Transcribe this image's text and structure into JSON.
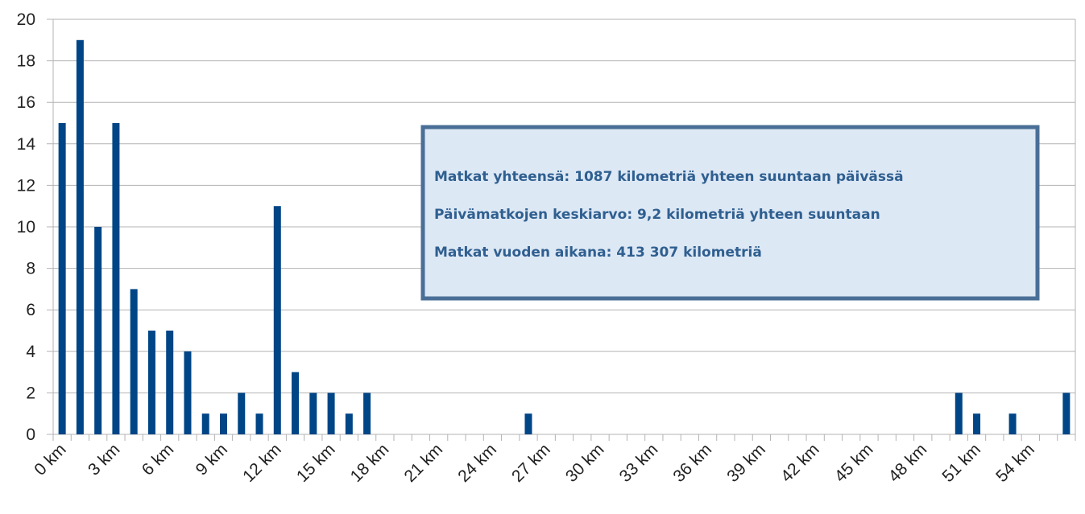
{
  "chart_data": {
    "type": "bar",
    "categories": [
      "0 km",
      null,
      null,
      "3 km",
      null,
      null,
      "6 km",
      null,
      null,
      "9 km",
      null,
      null,
      "12 km",
      null,
      null,
      "15 km",
      null,
      null,
      "18 km",
      null,
      null,
      "21 km",
      null,
      null,
      "24 km",
      null,
      null,
      "27 km",
      null,
      null,
      "30 km",
      null,
      null,
      "33 km",
      null,
      null,
      "36 km",
      null,
      null,
      "39 km",
      null,
      null,
      "42 km",
      null,
      null,
      "45 km",
      null,
      null,
      "48 km",
      null,
      null,
      "51 km",
      null,
      null,
      "54 km",
      null,
      null
    ],
    "values": [
      15,
      19,
      10,
      15,
      7,
      5,
      5,
      4,
      1,
      1,
      2,
      1,
      11,
      3,
      2,
      2,
      1,
      2,
      0,
      0,
      0,
      0,
      0,
      0,
      0,
      0,
      1,
      0,
      0,
      0,
      0,
      0,
      0,
      0,
      0,
      0,
      0,
      0,
      0,
      0,
      0,
      0,
      0,
      0,
      0,
      0,
      0,
      0,
      0,
      0,
      2,
      1,
      0,
      1,
      0,
      0,
      2
    ],
    "color": "#004586",
    "ylim": [
      0,
      20
    ],
    "yticks": [
      0,
      2,
      4,
      6,
      8,
      10,
      12,
      14,
      16,
      18,
      20
    ],
    "grid": true,
    "annotations": [
      "Matkat yhteensä: 1087 kilometriä yhteen suuntaan päivässä",
      "Päivämatkojen keskiarvo: 9,2 kilometriä yhteen suuntaan",
      "Matkat vuoden aikana: 413 307 kilometriä"
    ]
  }
}
